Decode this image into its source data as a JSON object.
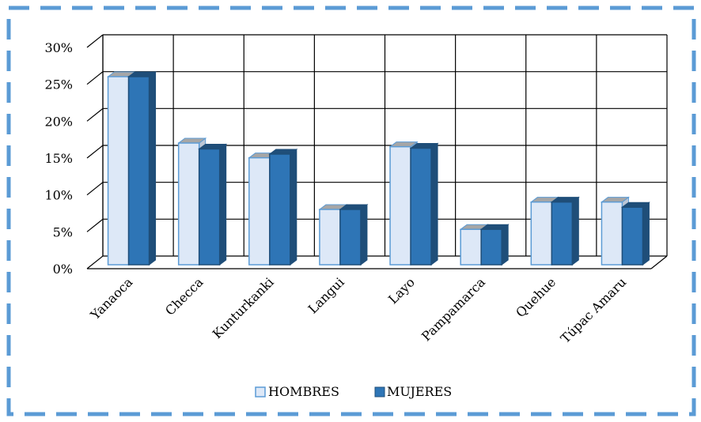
{
  "colors": {
    "border": "#5b9bd5",
    "hombres_face": "#dde8f7",
    "hombres_top": "#a6a6a6",
    "hombres_side": "#bcc7d6",
    "hombres_edge": "#5b9bd5",
    "mujeres_face": "#2e75b6",
    "mujeres_top": "#1f4e79",
    "mujeres_side": "#1f4e79",
    "grid": "#000000"
  },
  "chart_data": {
    "type": "bar",
    "style": "3d-clustered-column",
    "categories": [
      "Yanaoca",
      "Checca",
      "Kunturkanki",
      "Langui",
      "Layo",
      "Pampamarca",
      "Quehue",
      "Túpac Amaru"
    ],
    "series": [
      {
        "name": "HOMBRES",
        "values": [
          25.5,
          16.5,
          14.5,
          7.5,
          16.0,
          4.8,
          8.5,
          8.5
        ]
      },
      {
        "name": "MUJERES",
        "values": [
          25.5,
          15.7,
          15.0,
          7.5,
          15.8,
          4.8,
          8.5,
          7.8
        ]
      }
    ],
    "y_ticks": [
      "0%",
      "5%",
      "10%",
      "15%",
      "20%",
      "25%",
      "30%"
    ],
    "ylim": [
      0,
      30
    ],
    "grid": true,
    "legend_position": "bottom"
  }
}
